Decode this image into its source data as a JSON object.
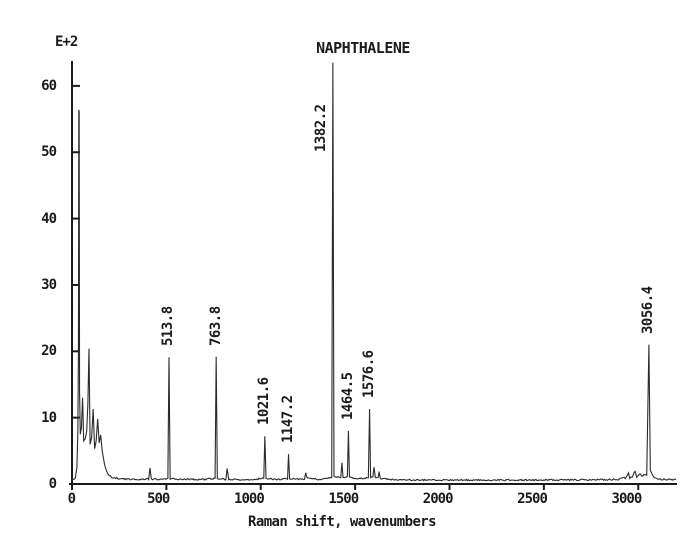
{
  "chart_data": {
    "type": "line",
    "title": "NAPHTHALENE",
    "xlabel": "Raman shift, wavenumbers",
    "y_scale_label": "E+2",
    "xlim": [
      0,
      3200
    ],
    "ylim": [
      0,
      63.6
    ],
    "x_ticks": [
      0,
      500,
      1000,
      1500,
      2000,
      2500,
      3000
    ],
    "y_ticks": [
      0,
      10,
      20,
      30,
      40,
      50,
      60
    ],
    "grid": false,
    "legend": null,
    "line_color": "#2b2b2b",
    "axis_color": "#1b1b1b",
    "background": "#ffffff",
    "noise_amplitude": 0.22,
    "labeled_peaks": [
      {
        "label": "513.8",
        "x": 513.8,
        "height": 19.1
      },
      {
        "label": "763.8",
        "x": 763.8,
        "height": 19.2
      },
      {
        "label": "1021.6",
        "x": 1021.6,
        "height": 7.2
      },
      {
        "label": "1147.2",
        "x": 1147.2,
        "height": 4.5
      },
      {
        "label": "1382.2",
        "x": 1382.2,
        "height": 63.5
      },
      {
        "label": "1464.5",
        "x": 1464.5,
        "height": 8.0
      },
      {
        "label": "1576.6",
        "x": 1576.6,
        "height": 11.3
      },
      {
        "label": "3056.4",
        "x": 3056.4,
        "height": 21.0
      }
    ],
    "profile": [
      [
        0,
        0.7
      ],
      [
        18,
        0.9
      ],
      [
        26,
        2.5
      ],
      [
        31,
        8
      ],
      [
        34,
        20
      ],
      [
        36,
        56.4
      ],
      [
        38,
        56.0
      ],
      [
        40,
        14
      ],
      [
        44,
        7.5
      ],
      [
        50,
        8.5
      ],
      [
        56,
        13
      ],
      [
        62,
        6.5
      ],
      [
        70,
        6.8
      ],
      [
        78,
        8
      ],
      [
        84,
        12
      ],
      [
        90,
        20.4
      ],
      [
        96,
        6
      ],
      [
        104,
        7
      ],
      [
        112,
        11.3
      ],
      [
        120,
        5.3
      ],
      [
        128,
        6.5
      ],
      [
        136,
        9.8
      ],
      [
        144,
        6.2
      ],
      [
        152,
        7.4
      ],
      [
        160,
        5
      ],
      [
        172,
        3
      ],
      [
        188,
        1.6
      ],
      [
        210,
        1.0
      ],
      [
        260,
        0.75
      ],
      [
        360,
        0.7
      ],
      [
        406,
        0.75
      ],
      [
        413,
        2.5
      ],
      [
        420,
        0.75
      ],
      [
        470,
        0.7
      ],
      [
        508,
        0.8
      ],
      [
        513.8,
        19.1
      ],
      [
        520,
        0.8
      ],
      [
        600,
        0.7
      ],
      [
        700,
        0.7
      ],
      [
        758,
        0.85
      ],
      [
        763.8,
        19.2
      ],
      [
        770,
        0.85
      ],
      [
        815,
        0.7
      ],
      [
        822,
        2.3
      ],
      [
        830,
        0.7
      ],
      [
        900,
        0.65
      ],
      [
        960,
        0.7
      ],
      [
        1016,
        0.85
      ],
      [
        1021.6,
        7.2
      ],
      [
        1028,
        0.85
      ],
      [
        1080,
        0.7
      ],
      [
        1142,
        0.8
      ],
      [
        1147.2,
        4.5
      ],
      [
        1153,
        0.8
      ],
      [
        1200,
        0.7
      ],
      [
        1232,
        0.8
      ],
      [
        1238,
        1.6
      ],
      [
        1246,
        0.9
      ],
      [
        1300,
        0.7
      ],
      [
        1340,
        0.75
      ],
      [
        1376,
        1.0
      ],
      [
        1382.2,
        63.5
      ],
      [
        1388,
        1.2
      ],
      [
        1424,
        0.9
      ],
      [
        1430,
        3.2
      ],
      [
        1436,
        0.9
      ],
      [
        1459,
        1.1
      ],
      [
        1464.5,
        8.0
      ],
      [
        1470,
        1.0
      ],
      [
        1500,
        0.8
      ],
      [
        1570,
        0.9
      ],
      [
        1576.6,
        11.3
      ],
      [
        1582,
        0.9
      ],
      [
        1594,
        1.1
      ],
      [
        1600,
        2.6
      ],
      [
        1607,
        1.0
      ],
      [
        1622,
        0.9
      ],
      [
        1627,
        1.9
      ],
      [
        1633,
        0.8
      ],
      [
        1700,
        0.65
      ],
      [
        1800,
        0.6
      ],
      [
        2000,
        0.6
      ],
      [
        2200,
        0.6
      ],
      [
        2400,
        0.6
      ],
      [
        2600,
        0.6
      ],
      [
        2800,
        0.65
      ],
      [
        2900,
        0.7
      ],
      [
        2925,
        1.1
      ],
      [
        2932,
        0.8
      ],
      [
        2948,
        1.7
      ],
      [
        2955,
        0.9
      ],
      [
        2968,
        1.0
      ],
      [
        2983,
        2.0
      ],
      [
        2992,
        1.1
      ],
      [
        3010,
        1.6
      ],
      [
        3020,
        1.2
      ],
      [
        3035,
        1.4
      ],
      [
        3045,
        1.3
      ],
      [
        3056.4,
        21.0
      ],
      [
        3064,
        2.0
      ],
      [
        3075,
        1.3
      ],
      [
        3090,
        0.9
      ],
      [
        3120,
        0.7
      ],
      [
        3200,
        0.65
      ]
    ]
  }
}
